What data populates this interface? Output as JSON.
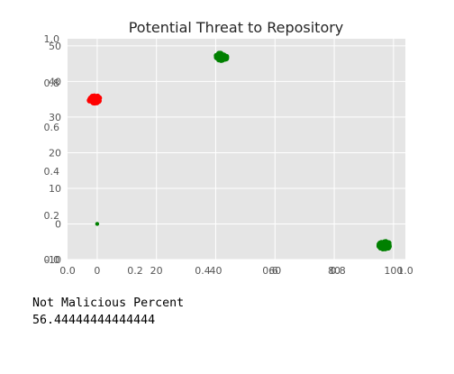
{
  "chart_data": {
    "type": "scatter",
    "title": "Potential Threat to Repository",
    "grid": true,
    "xlim": [
      -10,
      104
    ],
    "ylim": [
      -10,
      52
    ],
    "xticks": [
      0,
      20,
      40,
      60,
      80,
      100
    ],
    "yticks": [
      -10,
      0,
      10,
      20,
      30,
      40,
      50
    ],
    "overlay_axis": {
      "xticks": [
        "0.0",
        "0.2",
        "0.4",
        "0.6",
        "0.8",
        "1.0"
      ],
      "yticks": [
        "0.0",
        "0.2",
        "0.4",
        "0.6",
        "0.8",
        "1.0"
      ]
    },
    "clusters": [
      {
        "color": "#ff0000",
        "x": -1,
        "y": 35,
        "count": 40
      },
      {
        "color": "#008000",
        "x": 42,
        "y": 47,
        "count": 40
      },
      {
        "color": "#008000",
        "x": 97,
        "y": -6,
        "count": 60
      },
      {
        "color": "#008000",
        "x": 0,
        "y": 0,
        "count": 1
      }
    ]
  },
  "output": {
    "label": "Not Malicious Percent",
    "value": "56.44444444444444"
  }
}
